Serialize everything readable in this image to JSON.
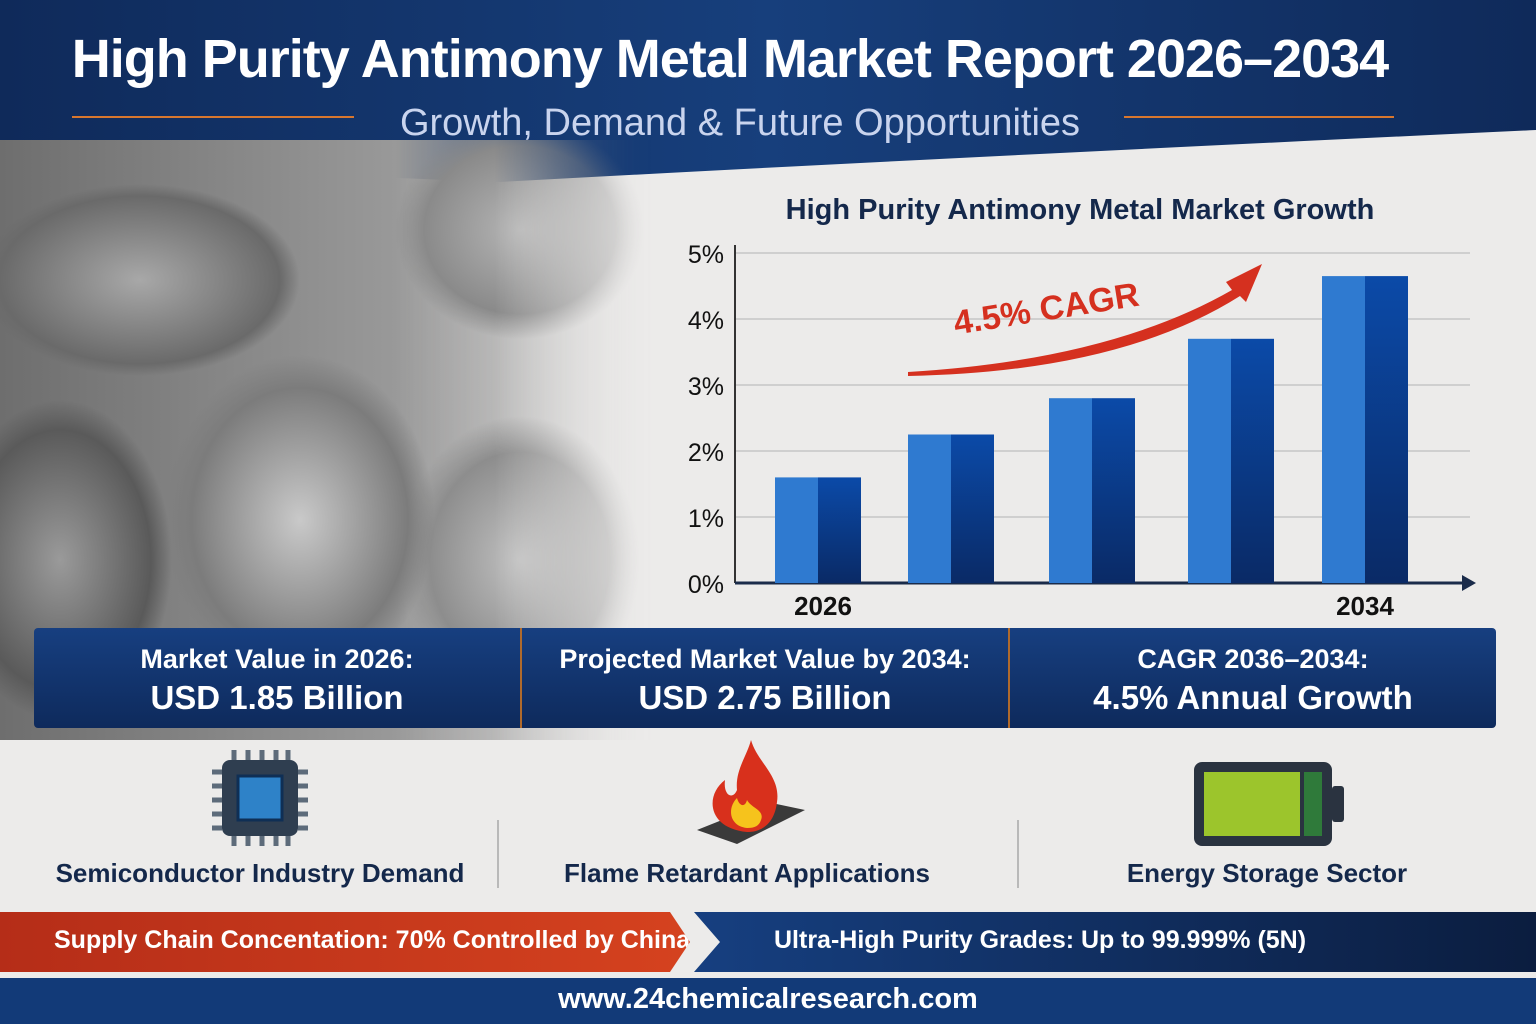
{
  "header": {
    "title": "High Purity Antimony Metal Market Report 2026–2034",
    "subtitle": "Growth, Demand & Future Opportunities"
  },
  "colors": {
    "navy": "#123a78",
    "bar_light": "#2f7ad0",
    "bar_dark": "#0b3a8c",
    "accent_red": "#d5301f",
    "accent_orange": "#d8772e"
  },
  "chart_data": {
    "type": "bar",
    "title": "High Purity Antimony Metal Market Growth",
    "categories": [
      "2026",
      "",
      "",
      "",
      "2034"
    ],
    "values": [
      1.6,
      2.25,
      2.8,
      3.7,
      4.65
    ],
    "yticks": [
      "0%",
      "1%",
      "2%",
      "3%",
      "4%",
      "5%"
    ],
    "ylim": [
      0,
      5
    ],
    "xlabel": "",
    "ylabel": "",
    "grid": true,
    "annotation": "4.5% CAGR"
  },
  "stats": [
    {
      "label": "Market Value in 2026:",
      "value": "USD 1.85 Billion"
    },
    {
      "label": "Projected Market Value by 2034:",
      "value": "USD 2.75 Billion"
    },
    {
      "label": "CAGR 2036–2034:",
      "value": "4.5% Annual Growth"
    }
  ],
  "features": [
    {
      "icon": "chip-icon",
      "label": "Semiconductor Industry Demand"
    },
    {
      "icon": "fire-icon",
      "label": "Flame Retardant Applications"
    },
    {
      "icon": "battery-icon",
      "label": "Energy Storage Sector"
    }
  ],
  "ribbons": {
    "left": "Supply Chain Concentation: 70% Controlled by China",
    "right": "Ultra-High Purity Grades: Up to 99.999% (5N)"
  },
  "footer": {
    "url": "www.24chemicalresearch.com"
  }
}
